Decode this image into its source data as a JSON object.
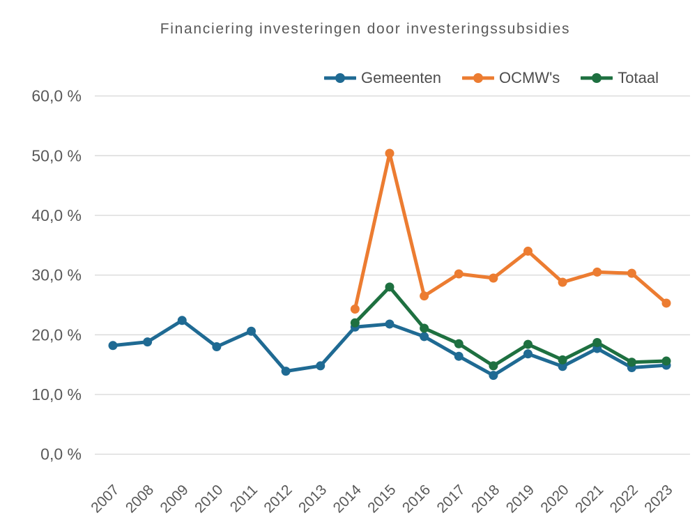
{
  "title": "Financiering investeringen door investeringssubsidies",
  "colors": {
    "background": "#FFFFFF",
    "grid": "#DADADA",
    "axis_text": "#595959",
    "title_text": "#595959",
    "legend_text": "#4D4D4D"
  },
  "chart_data": {
    "type": "line",
    "title": "Financiering investeringen door investeringssubsidies",
    "xlabel": "",
    "ylabel": "",
    "ylim": [
      0,
      60
    ],
    "y_tick_step": 10,
    "y_ticks": [
      "0,0 %",
      "10,0 %",
      "20,0 %",
      "30,0 %",
      "40,0 %",
      "50,0 %",
      "60,0 %"
    ],
    "grid": true,
    "legend_position": "top-right",
    "categories": [
      "2007",
      "2008",
      "2009",
      "2010",
      "2011",
      "2012",
      "2013",
      "2014",
      "2015",
      "2016",
      "2017",
      "2018",
      "2019",
      "2020",
      "2021",
      "2022",
      "2023"
    ],
    "series": [
      {
        "name": "Gemeenten",
        "color": "#1F6A93",
        "values": [
          18.2,
          18.8,
          22.4,
          18.0,
          20.6,
          13.9,
          14.8,
          21.3,
          21.8,
          19.7,
          16.4,
          13.2,
          16.8,
          14.7,
          17.7,
          14.5,
          14.9
        ]
      },
      {
        "name": "OCMW's",
        "color": "#EC7C31",
        "values": [
          null,
          null,
          null,
          null,
          null,
          null,
          null,
          24.3,
          50.4,
          26.5,
          30.2,
          29.5,
          34.0,
          28.8,
          30.5,
          30.3,
          25.3
        ]
      },
      {
        "name": "Totaal",
        "color": "#1E7040",
        "values": [
          null,
          null,
          null,
          null,
          null,
          null,
          null,
          22.0,
          28.0,
          21.1,
          18.5,
          14.8,
          18.4,
          15.8,
          18.7,
          15.4,
          15.6
        ]
      }
    ]
  }
}
